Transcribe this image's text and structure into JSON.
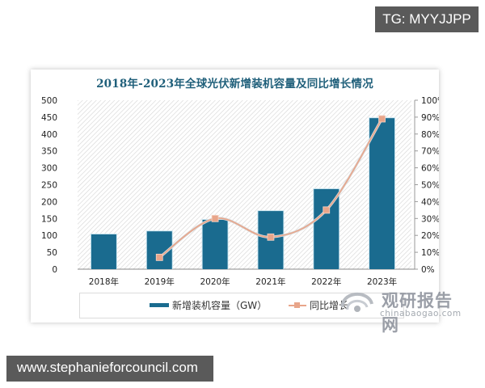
{
  "badges": {
    "top_right": "TG: MYYJJPP",
    "bottom_left": "www.stephanieforcouncil.com"
  },
  "chart": {
    "title": "2018年-2023年全球光伏新增装机容量及同比增长情况",
    "left_axis_ticks": [
      "0",
      "50",
      "100",
      "150",
      "200",
      "250",
      "300",
      "350",
      "400",
      "450",
      "500"
    ],
    "right_axis_ticks": [
      "0%",
      "10%",
      "20%",
      "30%",
      "40%",
      "50%",
      "60%",
      "70%",
      "80%",
      "90%",
      "100%"
    ],
    "categories": [
      "2018年",
      "2019年",
      "2020年",
      "2021年",
      "2022年",
      "2023年"
    ],
    "legend": {
      "bar_label": "新增装机容量（GW）",
      "line_label": "同比增长"
    },
    "colors": {
      "bar": "#1a6b8f",
      "line": "#e8a58a",
      "title": "#1f5f7a"
    }
  },
  "watermark": {
    "main": "观研报告网",
    "sub": "chinabaogao.com"
  },
  "chart_data": {
    "type": "bar",
    "title": "2018年-2023年全球光伏新增装机容量及同比增长情况",
    "categories": [
      "2018年",
      "2019年",
      "2020年",
      "2021年",
      "2022年",
      "2023年"
    ],
    "series": [
      {
        "name": "新增装机容量（GW）",
        "type": "bar",
        "axis": "left",
        "values": [
          103,
          112,
          146,
          172,
          237,
          447
        ]
      },
      {
        "name": "同比增长",
        "type": "line",
        "axis": "right",
        "unit": "%",
        "values": [
          null,
          7,
          30,
          19,
          35,
          89
        ]
      }
    ],
    "xlabel": "",
    "ylabel": "",
    "ylim": [
      0,
      500
    ],
    "y2lim": [
      0,
      100
    ],
    "legend_position": "bottom",
    "grid": false,
    "background": "diagonal hatch"
  }
}
